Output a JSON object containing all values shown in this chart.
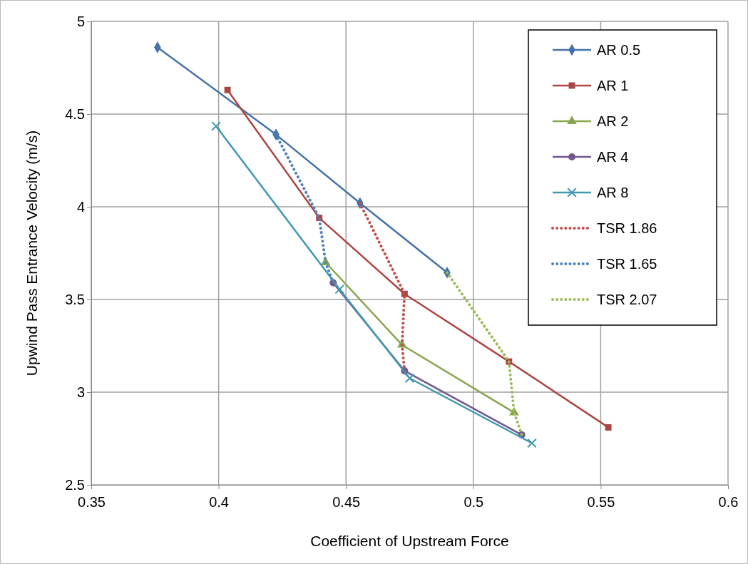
{
  "chart_data": {
    "type": "line",
    "xlabel": "Coefficient of Upstream Force",
    "ylabel": "Upwind Pass Entrance Velocity (m/s)",
    "xlim": [
      0.35,
      0.6
    ],
    "xticks": [
      0.35,
      0.4,
      0.45,
      0.5,
      0.55,
      0.6
    ],
    "ylim": [
      2.5,
      5
    ],
    "yticks": [
      2.5,
      3,
      3.5,
      4,
      4.5,
      5
    ],
    "grid": true,
    "legend": "top right",
    "series": [
      {
        "name": "AR 0.5",
        "color": "#4572a7",
        "marker": "diamond",
        "line_style": "solid",
        "x": [
          0.376,
          0.4225,
          0.4555,
          0.4897
        ],
        "values": [
          4.86,
          4.39,
          4.02,
          3.645
        ]
      },
      {
        "name": "AR 1",
        "color": "#aa4643",
        "marker": "square",
        "line_style": "solid",
        "x": [
          0.4035,
          0.4395,
          0.473,
          0.514,
          0.553
        ],
        "values": [
          4.63,
          3.94,
          3.53,
          3.165,
          2.81
        ]
      },
      {
        "name": "AR 2",
        "color": "#89a54e",
        "marker": "triangle",
        "line_style": "solid",
        "x": [
          0.442,
          0.472,
          0.516
        ],
        "values": [
          3.7,
          3.255,
          2.89
        ]
      },
      {
        "name": "AR 4",
        "color": "#71588f",
        "marker": "circle",
        "line_style": "solid",
        "x": [
          0.445,
          0.473,
          0.519
        ],
        "values": [
          3.59,
          3.115,
          2.77
        ]
      },
      {
        "name": "AR 8",
        "color": "#4198af",
        "marker": "cross",
        "line_style": "solid",
        "x": [
          0.399,
          0.4475,
          0.475,
          0.523
        ],
        "values": [
          4.435,
          3.555,
          3.075,
          2.725
        ]
      },
      {
        "name": "TSR 1.86",
        "color": "#c0504d",
        "marker": "none",
        "line_style": "dotted",
        "x": [
          0.4555,
          0.473,
          0.472,
          0.473
        ],
        "values": [
          4.02,
          3.53,
          3.255,
          3.115
        ]
      },
      {
        "name": "TSR 1.65",
        "color": "#4f81bd",
        "marker": "none",
        "line_style": "dotted",
        "x": [
          0.4225,
          0.4395,
          0.442,
          0.445
        ],
        "values": [
          4.39,
          3.94,
          3.7,
          3.59
        ]
      },
      {
        "name": "TSR 2.07",
        "color": "#9bbb59",
        "marker": "none",
        "line_style": "dotted",
        "x": [
          0.4897,
          0.514,
          0.516,
          0.519
        ],
        "values": [
          3.645,
          3.165,
          2.89,
          2.77
        ]
      }
    ]
  }
}
